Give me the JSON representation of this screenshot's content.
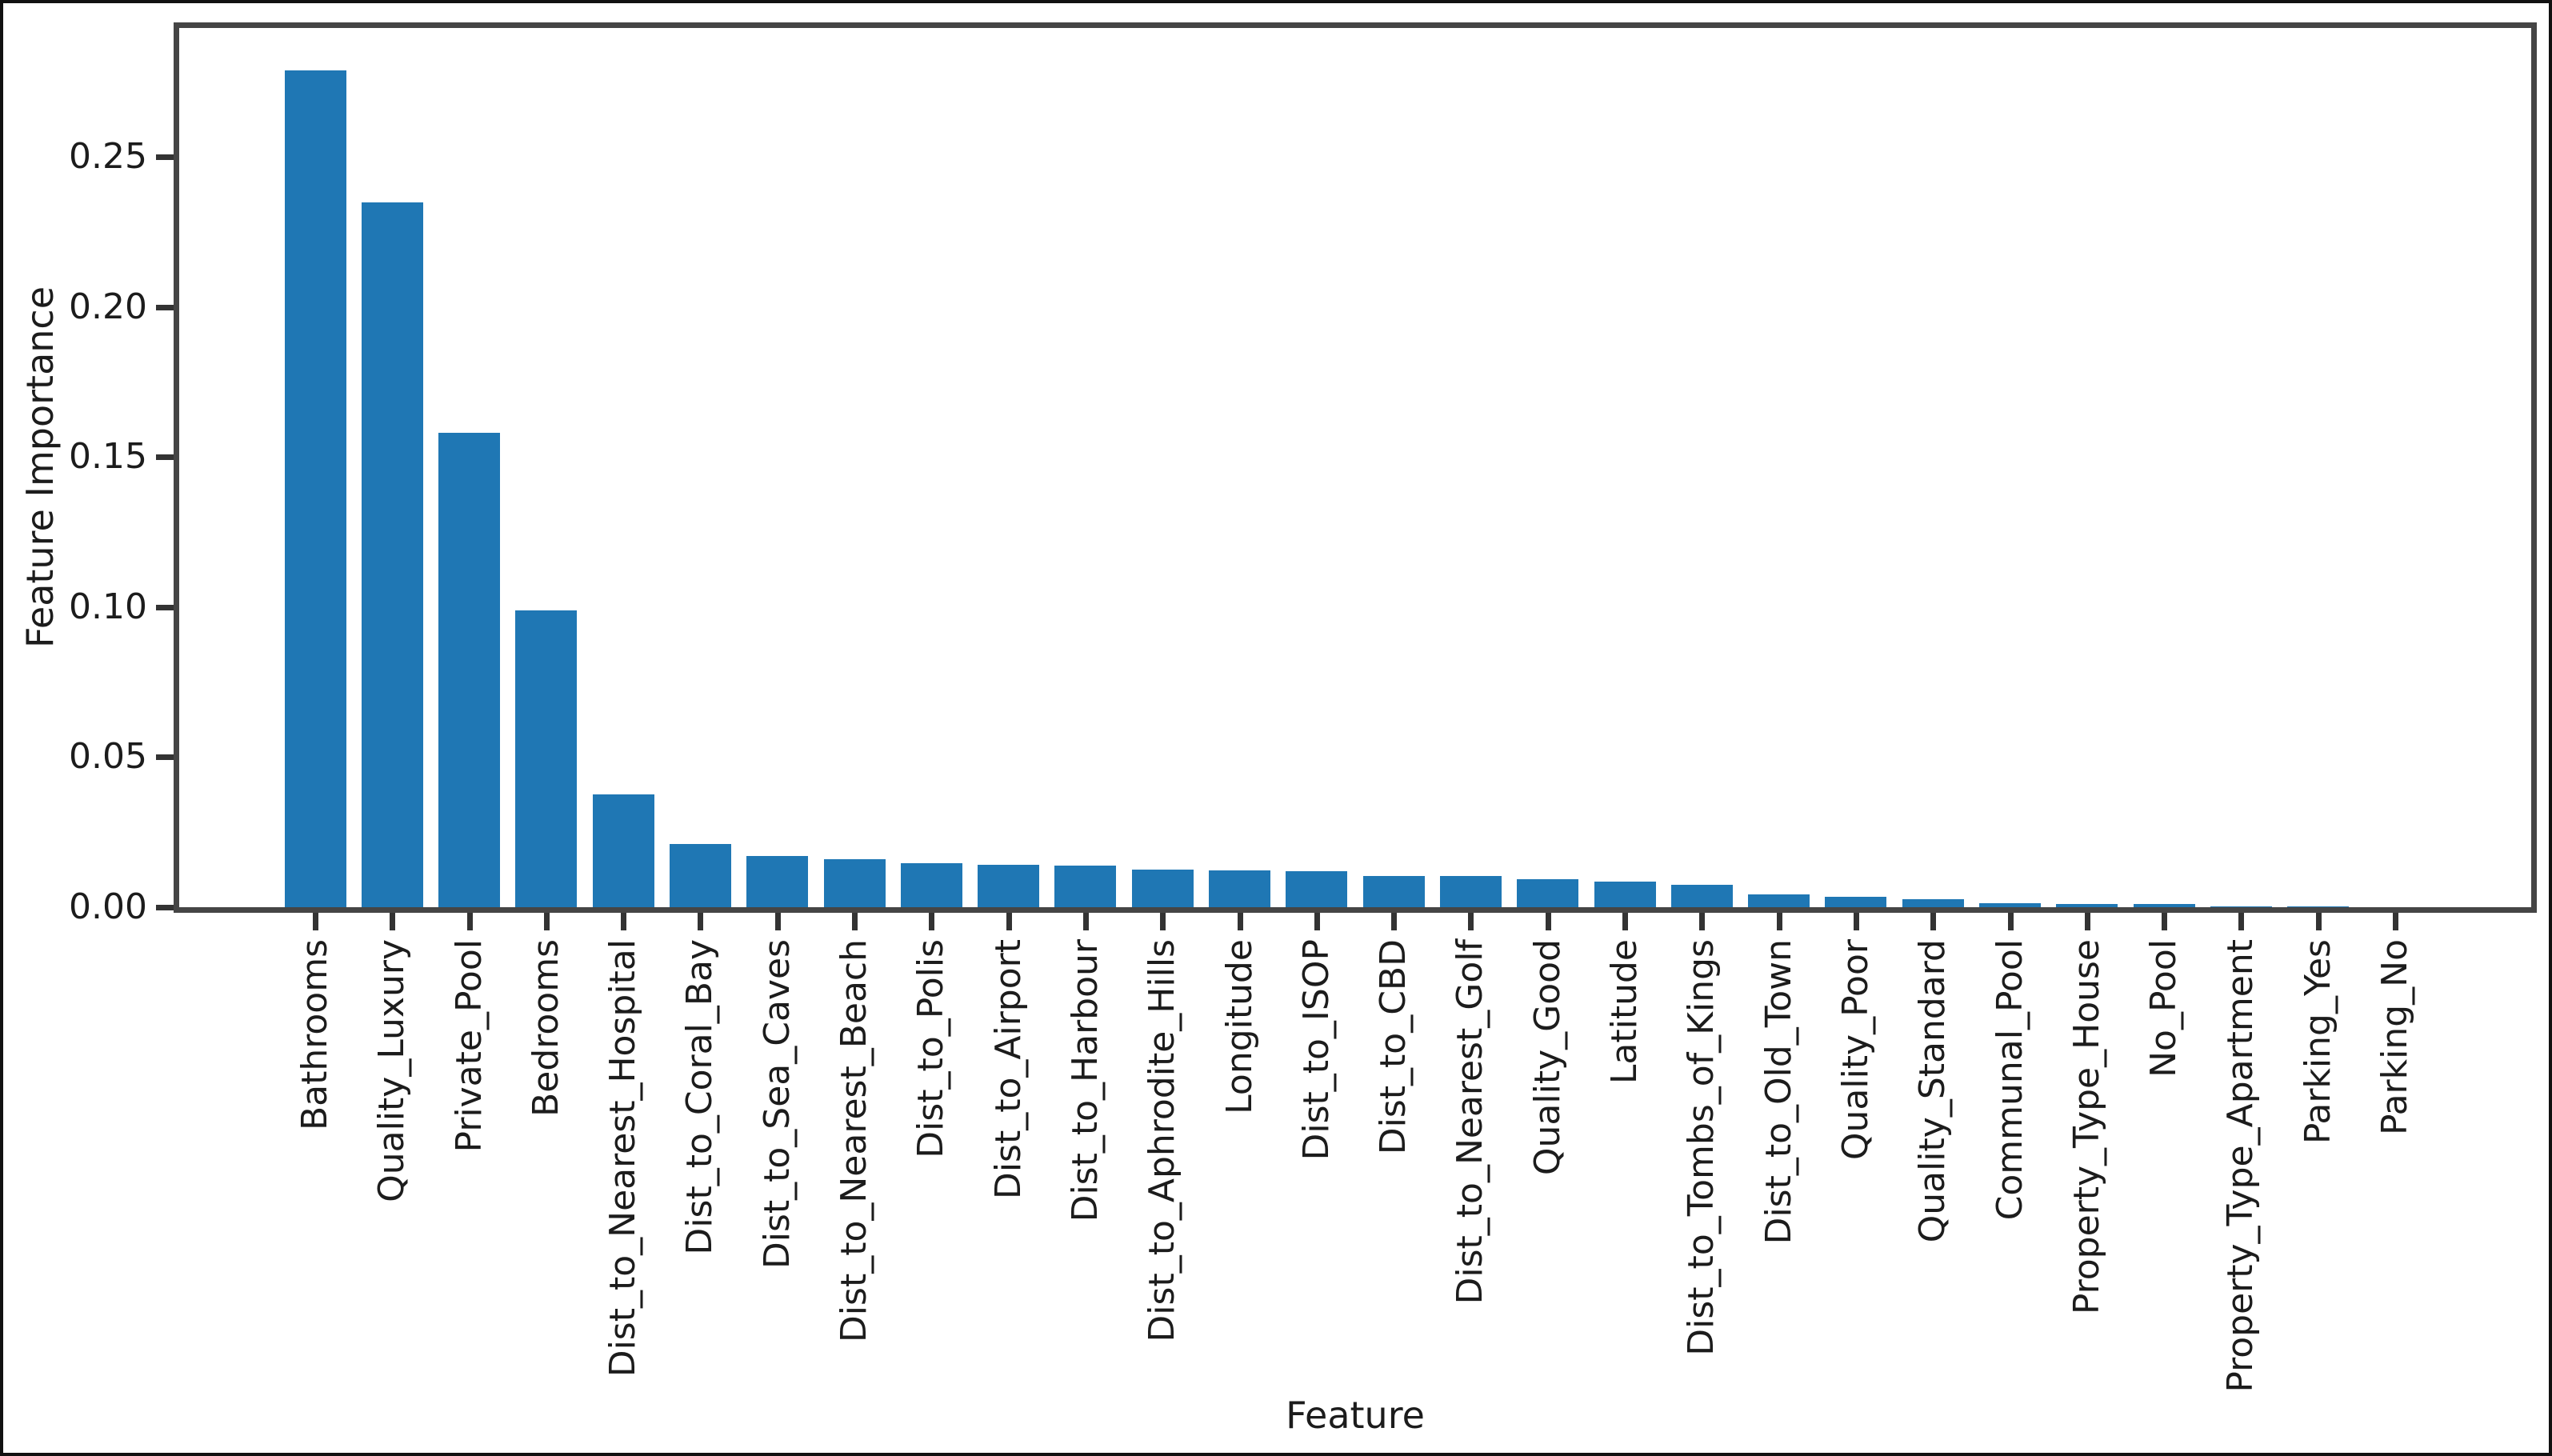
{
  "figure": {
    "background_color": "#ffffff",
    "bar_color": "#1f77b4",
    "axis_color": "#454545",
    "tick_color": "#333333",
    "text_color": "#1c1c1c"
  },
  "chart_data": {
    "type": "bar",
    "title": "",
    "xlabel": "Feature",
    "ylabel": "Feature Importance",
    "categories": [
      "Bathrooms",
      "Quality_Luxury",
      "Private_Pool",
      "Bedrooms",
      "Dist_to_Nearest_Hospital",
      "Dist_to_Coral_Bay",
      "Dist_to_Sea_Caves",
      "Dist_to_Nearest_Beach",
      "Dist_to_Polis",
      "Dist_to_Airport",
      "Dist_to_Harbour",
      "Dist_to_Aphrodite_Hills",
      "Longitude",
      "Dist_to_ISOP",
      "Dist_to_CBD",
      "Dist_to_Nearest_Golf",
      "Quality_Good",
      "Latitude",
      "Dist_to_Tombs_of_Kings",
      "Dist_to_Old_Town",
      "Quality_Poor",
      "Quality_Standard",
      "Communal_Pool",
      "Property_Type_House",
      "No_Pool",
      "Property_Type_Apartment",
      "Parking_Yes",
      "Parking_No"
    ],
    "values": [
      0.279,
      0.235,
      0.158,
      0.099,
      0.0375,
      0.021,
      0.017,
      0.016,
      0.0146,
      0.014,
      0.0138,
      0.0124,
      0.0123,
      0.0121,
      0.0105,
      0.0103,
      0.0092,
      0.0086,
      0.0074,
      0.0042,
      0.0034,
      0.0027,
      0.0012,
      0.0011,
      0.001,
      0.0003,
      0.0002,
      0.0001
    ],
    "yticks": [
      "0.00",
      "0.05",
      "0.10",
      "0.15",
      "0.20",
      "0.25"
    ],
    "ytick_values": [
      0.0,
      0.05,
      0.1,
      0.15,
      0.2,
      0.25
    ],
    "ylim": [
      0,
      0.293
    ],
    "grid": false,
    "legend_position": "none"
  }
}
